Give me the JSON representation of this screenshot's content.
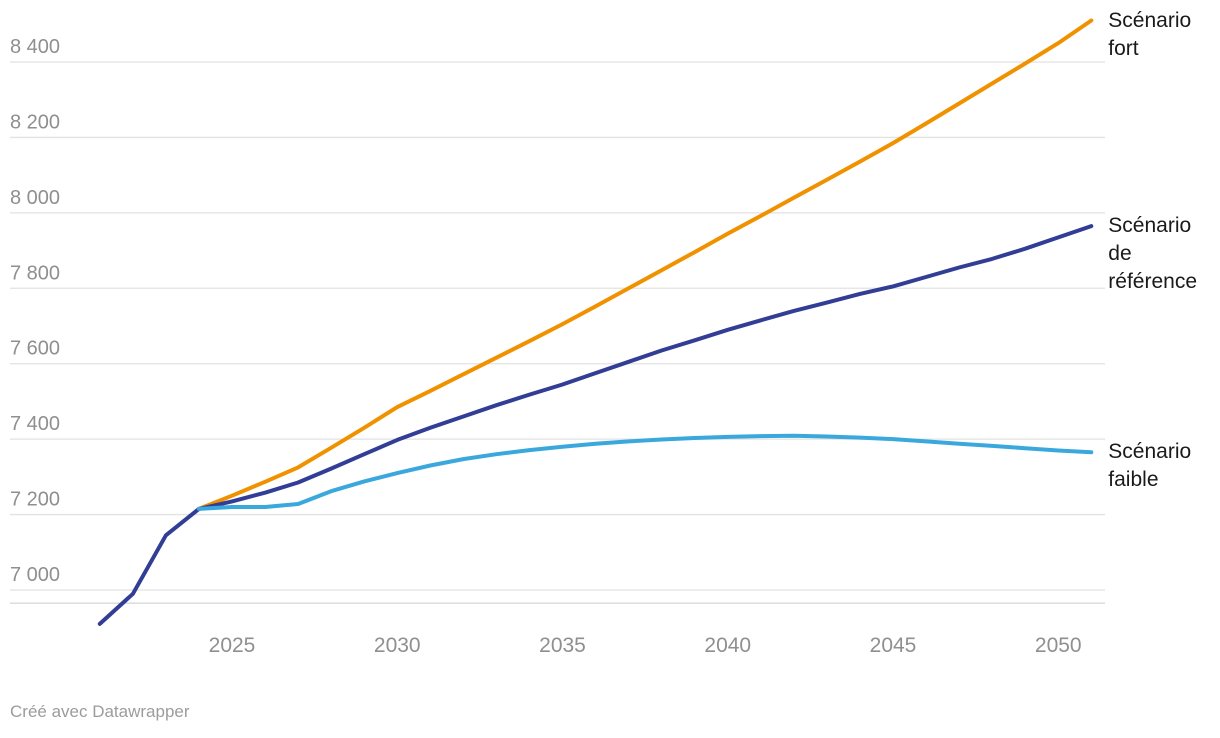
{
  "footer": {
    "credit": "Créé avec Datawrapper"
  },
  "colors": {
    "strong_scenario": "#f09100",
    "reference_scenario": "#323e95",
    "weak_scenario": "#3aa8dd",
    "gridline": "#e2e2e2",
    "baseline": "#d9d9d9",
    "axis_text": "#8f8f8f",
    "label_text": "#1a1a1a",
    "credit_text": "#9c9c9c"
  },
  "chart_data": {
    "type": "line",
    "title": "",
    "xlabel": "",
    "ylabel": "",
    "grid": true,
    "legend_position": "right-of-line-ends",
    "x_ticks": [
      2025,
      2030,
      2035,
      2040,
      2045,
      2050
    ],
    "y_ticks": [
      7000,
      7200,
      7400,
      7600,
      7800,
      8000,
      8200,
      8400
    ],
    "xlim": [
      2021,
      2051
    ],
    "ylim": [
      6965,
      8550
    ],
    "series": [
      {
        "name": "Scénario fort",
        "label_lines": [
          "Scénario",
          "fort"
        ],
        "color": "#f09100",
        "x": [
          2024,
          2025,
          2026,
          2027,
          2028,
          2029,
          2030,
          2031,
          2032,
          2033,
          2034,
          2035,
          2036,
          2037,
          2038,
          2039,
          2040,
          2041,
          2042,
          2043,
          2044,
          2045,
          2046,
          2047,
          2048,
          2049,
          2050,
          2051
        ],
        "values": [
          7215,
          7250,
          7287,
          7325,
          7377,
          7430,
          7485,
          7528,
          7572,
          7616,
          7660,
          7705,
          7752,
          7800,
          7848,
          7896,
          7945,
          7992,
          8040,
          8088,
          8136,
          8185,
          8237,
          8290,
          8343,
          8396,
          8450,
          8510
        ]
      },
      {
        "name": "Scénario de référence",
        "label_lines": [
          "Scénario",
          "de",
          "référence"
        ],
        "color": "#323e95",
        "x": [
          2021,
          2022,
          2023,
          2024,
          2025,
          2026,
          2027,
          2028,
          2029,
          2030,
          2031,
          2032,
          2033,
          2034,
          2035,
          2036,
          2037,
          2038,
          2039,
          2040,
          2041,
          2042,
          2043,
          2044,
          2045,
          2046,
          2047,
          2048,
          2049,
          2050,
          2051
        ],
        "values": [
          6910,
          6990,
          7145,
          7215,
          7235,
          7258,
          7285,
          7322,
          7360,
          7398,
          7430,
          7460,
          7490,
          7518,
          7545,
          7575,
          7605,
          7635,
          7662,
          7690,
          7715,
          7740,
          7762,
          7785,
          7805,
          7830,
          7855,
          7878,
          7905,
          7935,
          7965
        ]
      },
      {
        "name": "Scénario faible",
        "label_lines": [
          "Scénario",
          "faible"
        ],
        "color": "#3aa8dd",
        "x": [
          2024,
          2025,
          2026,
          2027,
          2028,
          2029,
          2030,
          2031,
          2032,
          2033,
          2034,
          2035,
          2036,
          2037,
          2038,
          2039,
          2040,
          2041,
          2042,
          2043,
          2044,
          2045,
          2046,
          2047,
          2048,
          2049,
          2050,
          2051
        ],
        "values": [
          7215,
          7220,
          7220,
          7228,
          7262,
          7288,
          7310,
          7330,
          7347,
          7360,
          7371,
          7380,
          7388,
          7394,
          7399,
          7403,
          7406,
          7408,
          7409,
          7407,
          7404,
          7400,
          7394,
          7388,
          7382,
          7376,
          7370,
          7365
        ]
      }
    ]
  }
}
